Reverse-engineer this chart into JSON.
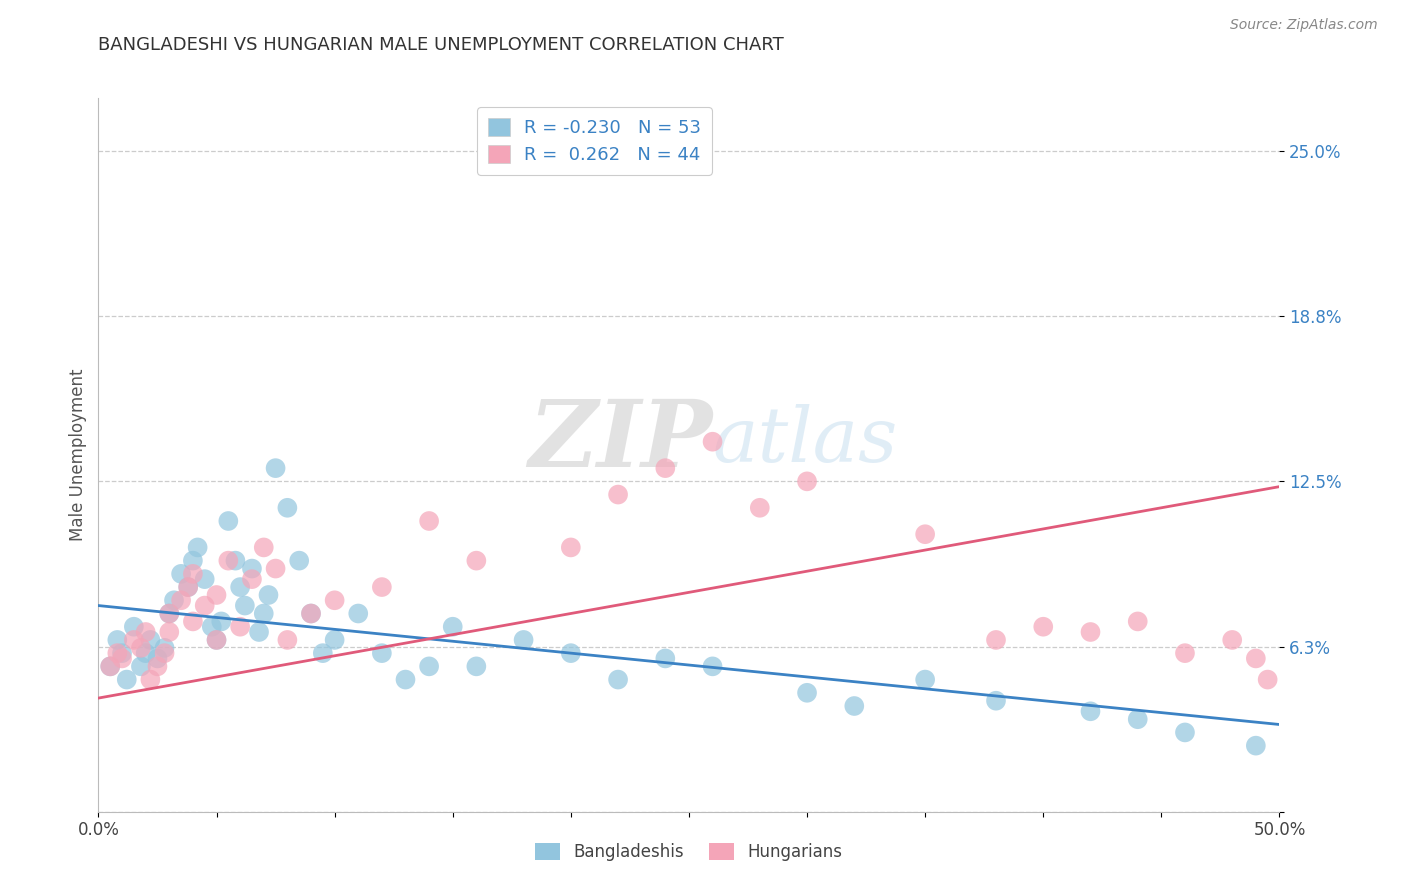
{
  "title": "BANGLADESHI VS HUNGARIAN MALE UNEMPLOYMENT CORRELATION CHART",
  "source": "Source: ZipAtlas.com",
  "ylabel": "Male Unemployment",
  "yticks": [
    0.0,
    0.0625,
    0.125,
    0.1875,
    0.25
  ],
  "ytick_labels": [
    "",
    "6.3%",
    "12.5%",
    "18.8%",
    "25.0%"
  ],
  "xlim": [
    0.0,
    0.5
  ],
  "ylim": [
    0.0,
    0.27
  ],
  "bangladeshi_R": -0.23,
  "bangladeshi_N": 53,
  "hungarian_R": 0.262,
  "hungarian_N": 44,
  "blue_color": "#92c5de",
  "pink_color": "#f4a5b8",
  "blue_line_color": "#3b82c4",
  "pink_line_color": "#e05a7a",
  "blue_r_color": "#e05a7a",
  "pink_r_color": "#3b82c4",
  "bangladeshi_x": [
    0.005,
    0.008,
    0.01,
    0.012,
    0.015,
    0.018,
    0.02,
    0.022,
    0.025,
    0.028,
    0.03,
    0.032,
    0.035,
    0.038,
    0.04,
    0.042,
    0.045,
    0.048,
    0.05,
    0.052,
    0.055,
    0.058,
    0.06,
    0.062,
    0.065,
    0.068,
    0.07,
    0.072,
    0.075,
    0.08,
    0.085,
    0.09,
    0.095,
    0.1,
    0.11,
    0.12,
    0.13,
    0.14,
    0.15,
    0.16,
    0.18,
    0.2,
    0.22,
    0.24,
    0.26,
    0.3,
    0.32,
    0.35,
    0.38,
    0.42,
    0.44,
    0.46,
    0.49
  ],
  "bangladeshi_y": [
    0.055,
    0.065,
    0.06,
    0.05,
    0.07,
    0.055,
    0.06,
    0.065,
    0.058,
    0.062,
    0.075,
    0.08,
    0.09,
    0.085,
    0.095,
    0.1,
    0.088,
    0.07,
    0.065,
    0.072,
    0.11,
    0.095,
    0.085,
    0.078,
    0.092,
    0.068,
    0.075,
    0.082,
    0.13,
    0.115,
    0.095,
    0.075,
    0.06,
    0.065,
    0.075,
    0.06,
    0.05,
    0.055,
    0.07,
    0.055,
    0.065,
    0.06,
    0.05,
    0.058,
    0.055,
    0.045,
    0.04,
    0.05,
    0.042,
    0.038,
    0.035,
    0.03,
    0.025
  ],
  "hungarian_x": [
    0.005,
    0.008,
    0.01,
    0.015,
    0.018,
    0.02,
    0.022,
    0.025,
    0.028,
    0.03,
    0.035,
    0.038,
    0.04,
    0.045,
    0.05,
    0.055,
    0.06,
    0.065,
    0.07,
    0.075,
    0.08,
    0.09,
    0.1,
    0.12,
    0.14,
    0.16,
    0.2,
    0.22,
    0.24,
    0.26,
    0.28,
    0.3,
    0.35,
    0.38,
    0.4,
    0.42,
    0.44,
    0.46,
    0.48,
    0.49,
    0.495,
    0.03,
    0.04,
    0.05
  ],
  "hungarian_y": [
    0.055,
    0.06,
    0.058,
    0.065,
    0.062,
    0.068,
    0.05,
    0.055,
    0.06,
    0.075,
    0.08,
    0.085,
    0.09,
    0.078,
    0.082,
    0.095,
    0.07,
    0.088,
    0.1,
    0.092,
    0.065,
    0.075,
    0.08,
    0.085,
    0.11,
    0.095,
    0.1,
    0.12,
    0.13,
    0.14,
    0.115,
    0.125,
    0.105,
    0.065,
    0.07,
    0.068,
    0.072,
    0.06,
    0.065,
    0.058,
    0.05,
    0.068,
    0.072,
    0.065
  ],
  "blue_trend_x": [
    0.0,
    0.5
  ],
  "blue_trend_y": [
    0.078,
    0.033
  ],
  "pink_trend_x": [
    0.0,
    0.5
  ],
  "pink_trend_y": [
    0.043,
    0.123
  ]
}
